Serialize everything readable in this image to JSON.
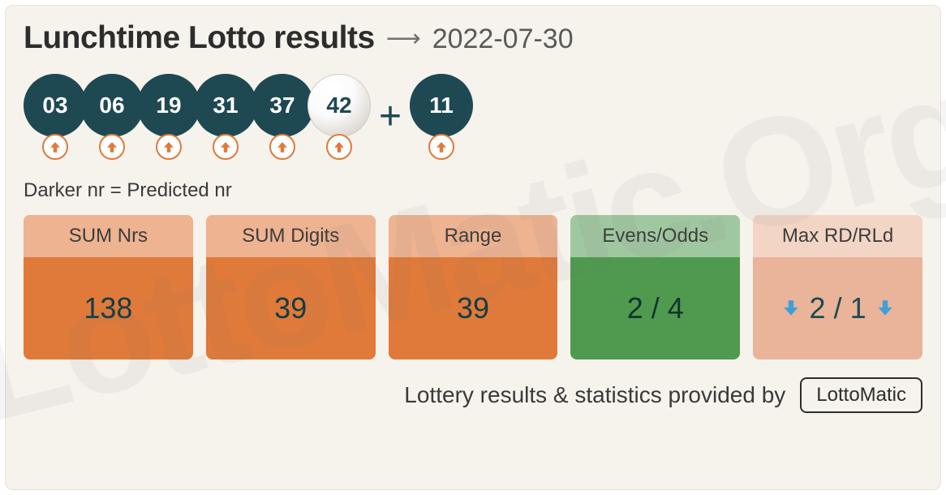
{
  "header": {
    "title": "Lunchtime Lotto results",
    "date": "2022-07-30"
  },
  "balls": {
    "main": [
      {
        "value": "03",
        "style": "dark",
        "trend": "up"
      },
      {
        "value": "06",
        "style": "dark",
        "trend": "up"
      },
      {
        "value": "19",
        "style": "dark",
        "trend": "up"
      },
      {
        "value": "31",
        "style": "dark",
        "trend": "up"
      },
      {
        "value": "37",
        "style": "dark",
        "trend": "up"
      },
      {
        "value": "42",
        "style": "light",
        "trend": "up"
      }
    ],
    "plus": "+",
    "bonus": {
      "value": "11",
      "style": "dark",
      "trend": "up"
    }
  },
  "legend": "Darker nr = Predicted nr",
  "stats": [
    {
      "label": "SUM Nrs",
      "value": "138",
      "theme": "orange"
    },
    {
      "label": "SUM Digits",
      "value": "39",
      "theme": "orange"
    },
    {
      "label": "Range",
      "value": "39",
      "theme": "orange"
    },
    {
      "label": "Evens/Odds",
      "value": "2 / 4",
      "theme": "green"
    },
    {
      "label": "Max RD/RLd",
      "value": "2 / 1",
      "theme": "pale",
      "rd_arrows": true
    }
  ],
  "footer": {
    "text": "Lottery results & statistics provided by",
    "provider": "LottoMatic"
  },
  "colors": {
    "card_bg": "#f6f2ec",
    "ball_dark": "#1e4952",
    "orange": "#e07a3a",
    "green": "#4f9a4f",
    "pale": "#e9b49a",
    "rd_arrow": "#3fa0d8"
  },
  "watermark": "LottoMatic.Org"
}
